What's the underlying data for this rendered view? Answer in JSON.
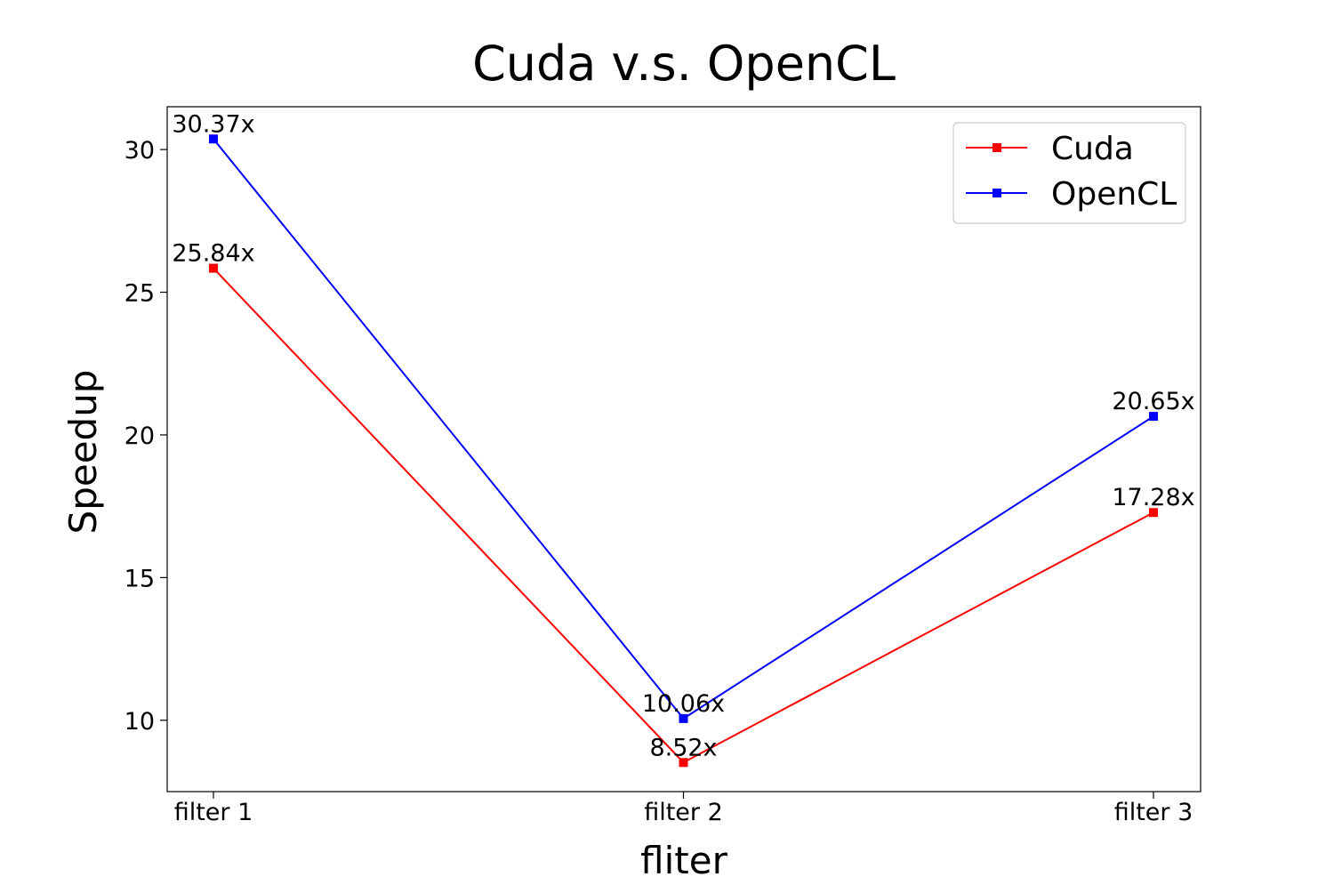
{
  "chart_data": {
    "type": "line",
    "title": "Cuda v.s. OpenCL",
    "xlabel": "fliter",
    "ylabel": "Speedup",
    "categories": [
      "filter 1",
      "filter 2",
      "filter 3"
    ],
    "ylim": [
      7.5,
      31.5
    ],
    "yticks": [
      10,
      15,
      20,
      25,
      30
    ],
    "grid": false,
    "legend_position": "top-right",
    "series": [
      {
        "name": "Cuda",
        "color": "#ff0000",
        "marker": "square",
        "values": [
          25.84,
          8.52,
          17.28
        ],
        "labels": [
          "25.84x",
          "8.52x",
          "17.28x"
        ]
      },
      {
        "name": "OpenCL",
        "color": "#0000ff",
        "marker": "square",
        "values": [
          30.37,
          10.06,
          20.65
        ],
        "labels": [
          "30.37x",
          "10.06x",
          "20.65x"
        ]
      }
    ]
  }
}
